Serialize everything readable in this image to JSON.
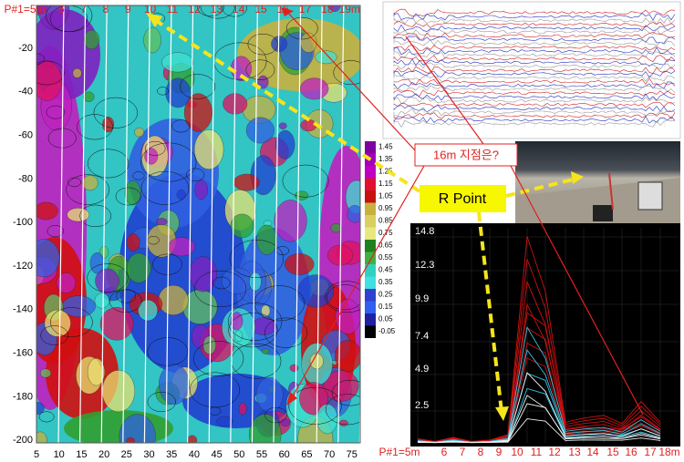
{
  "contour_map": {
    "top_labels": [
      "P#1=5m",
      "6",
      "7",
      "8",
      "9",
      "10",
      "11",
      "12",
      "13",
      "14",
      "15",
      "16",
      "17",
      "18",
      "19m"
    ],
    "x_ticks": [
      "5",
      "10",
      "15",
      "20",
      "25",
      "30",
      "35",
      "40",
      "45",
      "50",
      "55",
      "60",
      "65",
      "70",
      "75"
    ],
    "y_ticks": [
      "-20",
      "-40",
      "-60",
      "-80",
      "-100",
      "-120",
      "-140",
      "-160",
      "-180",
      "-200"
    ],
    "colorbar": [
      "1.45",
      "1.35",
      "1.25",
      "1.15",
      "1.05",
      "0.95",
      "0.85",
      "0.75",
      "0.65",
      "0.55",
      "0.45",
      "0.35",
      "0.25",
      "0.15",
      "0.05",
      "-0.05"
    ]
  },
  "callouts": {
    "question": "16m 지점은?",
    "r_point": "R Point"
  },
  "line_chart": {
    "y_ticks": [
      "14.8",
      "12.3",
      "9.9",
      "7.4",
      "4.9",
      "2.5"
    ],
    "x_labels": [
      "P#1=5m",
      "6",
      "7",
      "8",
      "9",
      "10",
      "11",
      "12",
      "13",
      "14",
      "15",
      "16",
      "17",
      "18m"
    ]
  }
}
